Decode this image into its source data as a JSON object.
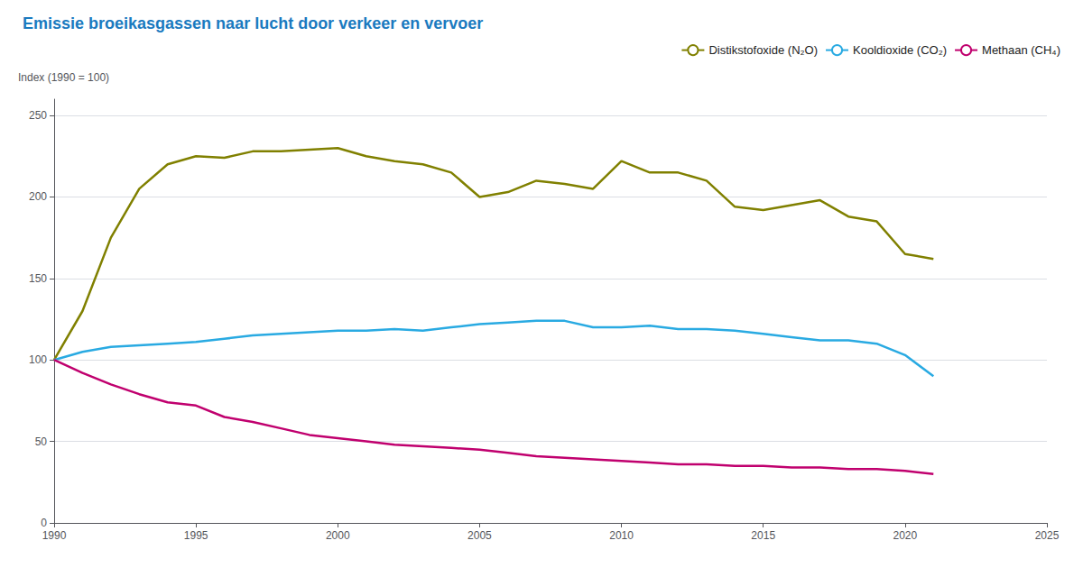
{
  "chart_data": {
    "type": "line",
    "title": "Emissie broeikasgassen naar lucht door verkeer en vervoer",
    "ylabel": "Index (1990 = 100)",
    "x": [
      1990,
      1991,
      1992,
      1993,
      1994,
      1995,
      1996,
      1997,
      1998,
      1999,
      2000,
      2001,
      2002,
      2003,
      2004,
      2005,
      2006,
      2007,
      2008,
      2009,
      2010,
      2011,
      2012,
      2013,
      2014,
      2015,
      2016,
      2017,
      2018,
      2019,
      2020,
      2021
    ],
    "series": [
      {
        "name": "Distikstofoxide (N₂O)",
        "color": "#808000",
        "values": [
          100,
          130,
          175,
          205,
          220,
          225,
          224,
          228,
          228,
          229,
          230,
          225,
          222,
          220,
          215,
          200,
          203,
          210,
          208,
          205,
          222,
          215,
          215,
          210,
          194,
          192,
          195,
          198,
          188,
          185,
          165,
          162
        ]
      },
      {
        "name": "Kooldioxide (CO₂)",
        "color": "#29aae2",
        "values": [
          100,
          105,
          108,
          109,
          110,
          111,
          113,
          115,
          116,
          117,
          118,
          118,
          119,
          118,
          120,
          122,
          123,
          124,
          124,
          120,
          120,
          121,
          119,
          119,
          118,
          116,
          114,
          112,
          112,
          110,
          103,
          90
        ]
      },
      {
        "name": "Methaan (CH₄)",
        "color": "#c0006e",
        "values": [
          100,
          92,
          85,
          79,
          74,
          72,
          65,
          62,
          58,
          54,
          52,
          50,
          48,
          47,
          46,
          45,
          43,
          41,
          40,
          39,
          38,
          37,
          36,
          36,
          35,
          35,
          34,
          34,
          33,
          33,
          32,
          30
        ]
      }
    ],
    "xlim": [
      1990,
      2025
    ],
    "xticks": [
      1990,
      1995,
      2000,
      2005,
      2010,
      2015,
      2020,
      2025
    ],
    "ylim": [
      0,
      260
    ],
    "yticks": [
      0,
      50,
      100,
      150,
      200,
      250
    ],
    "grid": true,
    "legend": "upper right"
  }
}
